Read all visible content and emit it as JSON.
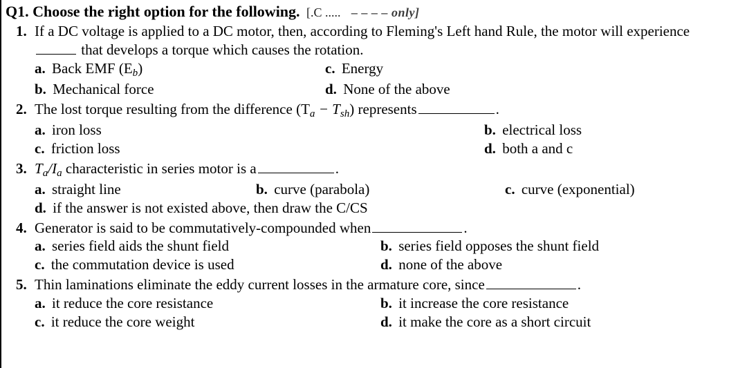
{
  "title": "Q1. Choose the right option for the following.",
  "title_partial_glyphs": "[.C .....",
  "title_tail": " ‒ ‒ ‒ ‒  only]",
  "questions": [
    {
      "stem_pre": "If a DC voltage is applied to a DC motor, then, according to Fleming's Left hand Rule, the motor will experience ",
      "stem_post": " that develops a torque which causes the rotation.",
      "options": {
        "a_label": "a.",
        "a": "Back EMF (E",
        "a_sub": "b",
        "a_tail": ")",
        "b_label": "b.",
        "b": "Mechanical force",
        "c_label": "c.",
        "c": "Energy",
        "d_label": "d.",
        "d": "None of the above"
      }
    },
    {
      "stem_pre": "The lost torque resulting from the difference (T",
      "stem_sub_a": "a",
      "stem_mid": " − T",
      "stem_sub_sh": "sh",
      "stem_post": ") represents",
      "options": {
        "a_label": "a.",
        "a": "iron loss",
        "b_label": "b.",
        "b": "electrical loss",
        "c_label": "c.",
        "c": "friction loss",
        "d_label": "d.",
        "d": "both a and c"
      }
    },
    {
      "stem_pre": "T",
      "stem_sub_a": "a",
      "stem_mid": "/I",
      "stem_sub_ia": "a",
      "stem_post": " characteristic in series motor is a",
      "options": {
        "a_label": "a.",
        "a": "straight line",
        "b_label": "b.",
        "b": "curve (parabola)",
        "c_label": "c.",
        "c": "curve (exponential)",
        "d_label": "d.",
        "d": "if the answer is not existed above, then draw the C/CS"
      }
    },
    {
      "stem": "Generator is said to be commutatively-compounded when",
      "options": {
        "a_label": "a.",
        "a": "series field aids the shunt field",
        "b_label": "b.",
        "b": "series field opposes the shunt field",
        "c_label": "c.",
        "c": "the commutation device is used",
        "d_label": "d.",
        "d": "none of the above"
      }
    },
    {
      "stem": "Thin laminations eliminate the eddy current losses in the armature core, since",
      "options": {
        "a_label": "a.",
        "a": "it reduce the core resistance",
        "b_label": "b.",
        "b": "it increase the core resistance",
        "c_label": "c.",
        "c": "it reduce the core weight",
        "d_label": "d.",
        "d": "it make the core as a short circuit"
      }
    }
  ]
}
